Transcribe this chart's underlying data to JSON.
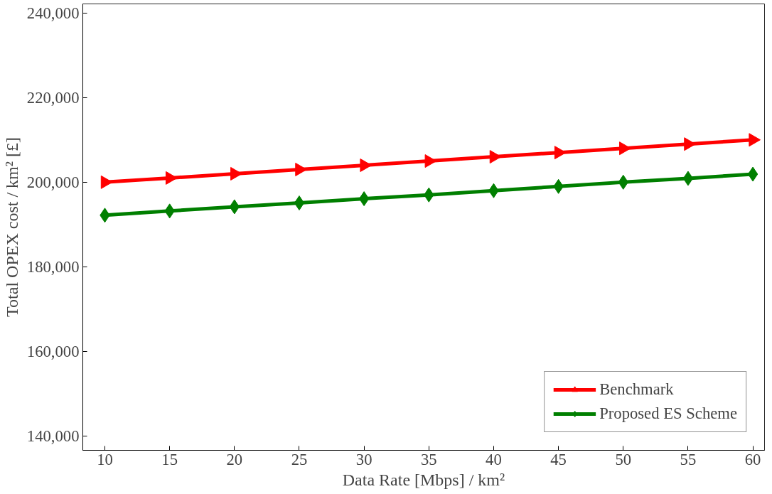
{
  "chart_data": {
    "type": "line",
    "xlabel": "Data Rate [Mbps] / km²",
    "ylabel": "Total OPEX cost / km² [£]",
    "x": [
      10,
      15,
      20,
      25,
      30,
      35,
      40,
      45,
      50,
      55,
      60
    ],
    "series": [
      {
        "name": "Benchmark",
        "color": "#ff0000",
        "marker": "triangle",
        "values": [
          200000,
          201000,
          202000,
          203000,
          204000,
          205000,
          206000,
          207000,
          208000,
          209000,
          210000
        ]
      },
      {
        "name": "Proposed ES Scheme",
        "color": "#007f00",
        "marker": "diamond",
        "values": [
          192200,
          193200,
          194200,
          195100,
          196100,
          197000,
          198000,
          199000,
          200000,
          200900,
          201900
        ]
      }
    ],
    "xlim": [
      8.3,
      60.9
    ],
    "ylim": [
      136700,
      242100
    ],
    "xticks": [
      10,
      15,
      20,
      25,
      30,
      35,
      40,
      45,
      50,
      55,
      60
    ],
    "yticks": [
      {
        "value": 140000,
        "label": "140,000"
      },
      {
        "value": 160000,
        "label": "160,000"
      },
      {
        "value": 180000,
        "label": "180,000"
      },
      {
        "value": 200000,
        "label": "200,000"
      },
      {
        "value": 220000,
        "label": "220,000"
      },
      {
        "value": 240000,
        "label": "240,000"
      }
    ],
    "grid": false,
    "legend": "bottom right",
    "line_style": "solid"
  }
}
